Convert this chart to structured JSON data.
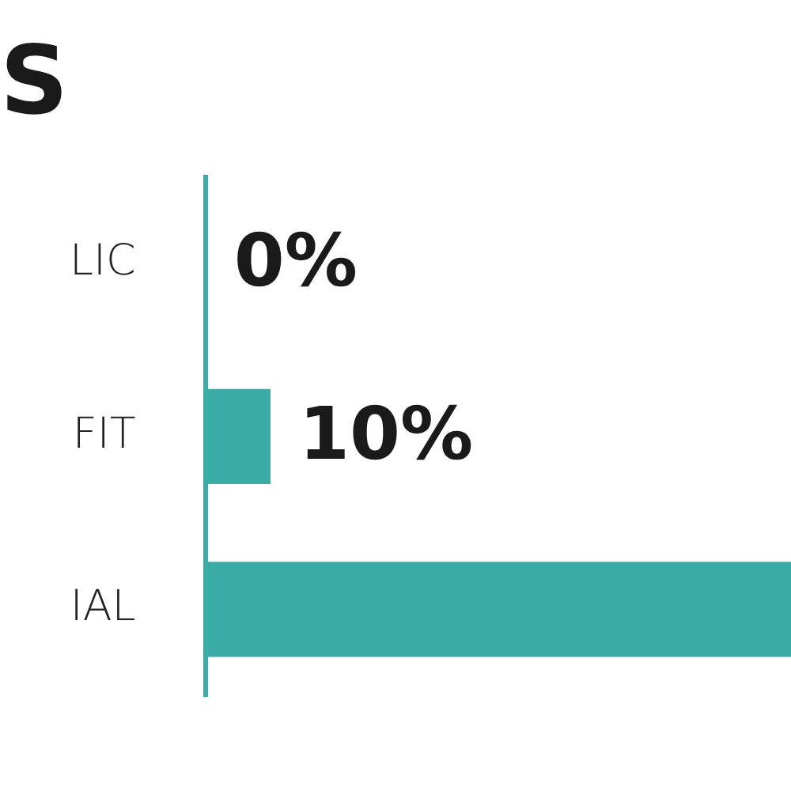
{
  "chart_data": {
    "type": "bar",
    "orientation": "horizontal",
    "title": "S",
    "categories": [
      "LIC",
      "FIT",
      "IAL"
    ],
    "values": [
      0,
      10,
      90
    ],
    "value_labels": [
      "0%",
      "10%",
      null
    ],
    "xlim": [
      0,
      90
    ],
    "color": "#3aaba5",
    "tick_labels": "y",
    "legend": false
  }
}
